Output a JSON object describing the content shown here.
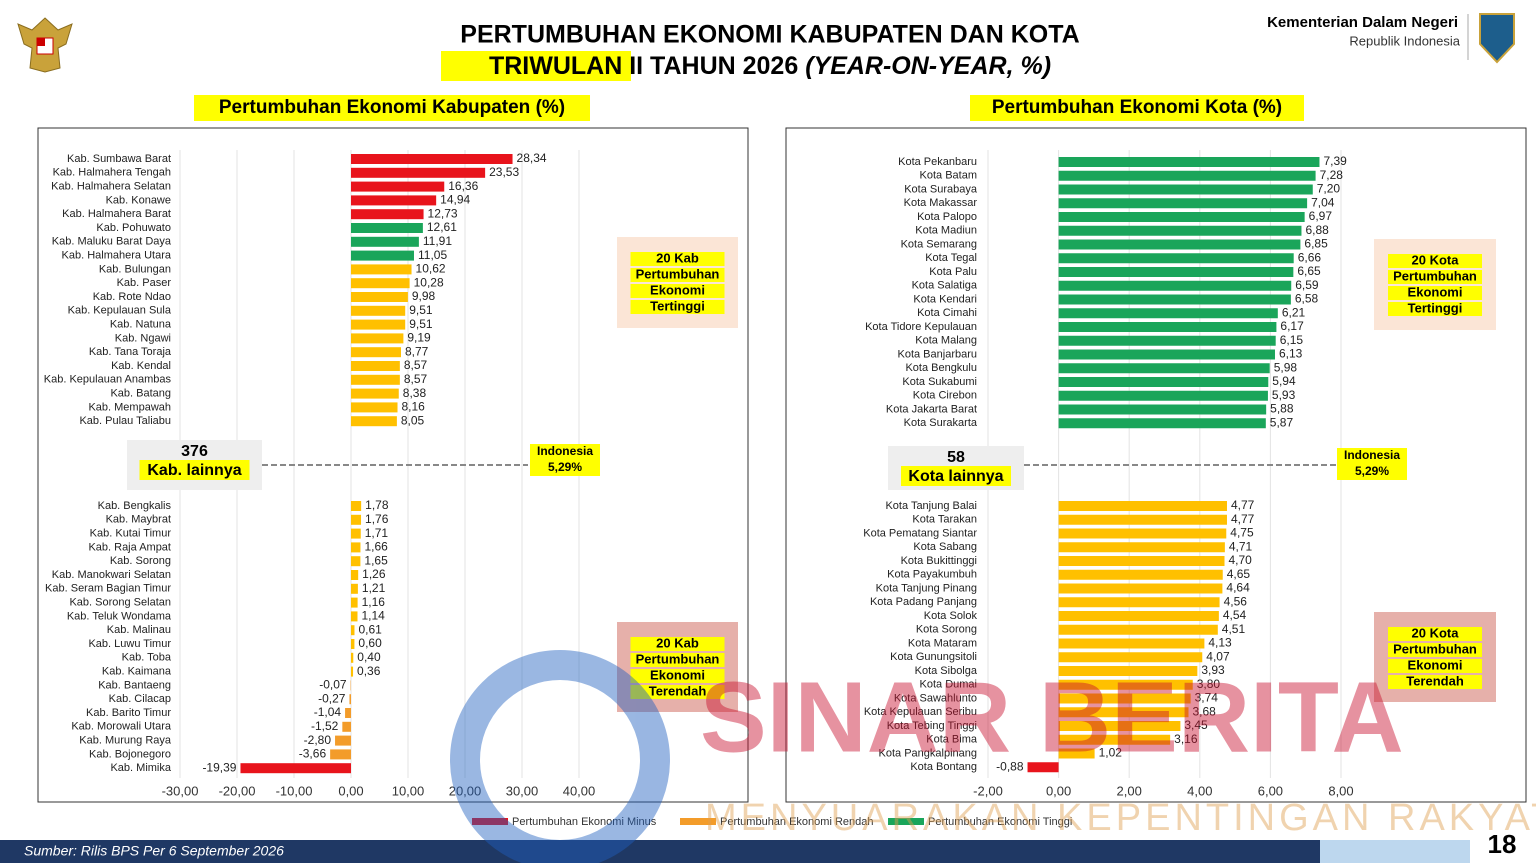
{
  "header": {
    "title_line1": "PERTUMBUHAN EKONOMI KABUPATEN DAN KOTA",
    "title_line2_highlight": "TRIWULAN II",
    "title_line2_rest": " TAHUN 2026 ",
    "title_line2_italic": "(YEAR-ON-YEAR, %)",
    "ministry": "Kementerian Dalam Negeri",
    "country": "Republik Indonesia"
  },
  "chart_data": [
    {
      "type": "bar",
      "orientation": "horizontal",
      "title": "Pertumbuhan Ekonomi Kabupaten (%)",
      "categories": [
        "Kab. Sumbawa Barat",
        "Kab. Halmahera Tengah",
        "Kab. Halmahera Selatan",
        "Kab. Konawe",
        "Kab. Halmahera Barat",
        "Kab. Pohuwato",
        "Kab. Maluku Barat Daya",
        "Kab. Halmahera Utara",
        "Kab. Bulungan",
        "Kab. Paser",
        "Kab. Rote Ndao",
        "Kab. Kepulauan Sula",
        "Kab. Natuna",
        "Kab. Ngawi",
        "Kab. Tana Toraja",
        "Kab. Kendal",
        "Kab. Kepulauan Anambas",
        "Kab. Batang",
        "Kab. Mempawah",
        "Kab. Pulau Taliabu",
        "Kab. Bengkalis",
        "Kab. Maybrat",
        "Kab. Kutai Timur",
        "Kab. Raja Ampat",
        "Kab. Sorong",
        "Kab. Manokwari Selatan",
        "Kab. Seram Bagian Timur",
        "Kab. Sorong Selatan",
        "Kab. Teluk Wondama",
        "Kab. Malinau",
        "Kab. Luwu Timur",
        "Kab. Toba",
        "Kab. Kaimana",
        "Kab. Bantaeng",
        "Kab. Cilacap",
        "Kab. Barito Timur",
        "Kab. Morowali Utara",
        "Kab. Murung Raya",
        "Kab. Bojonegoro",
        "Kab. Mimika"
      ],
      "values": [
        28.34,
        23.53,
        16.36,
        14.94,
        12.73,
        12.61,
        11.91,
        11.05,
        10.62,
        10.28,
        9.98,
        9.51,
        9.51,
        9.19,
        8.77,
        8.57,
        8.57,
        8.38,
        8.16,
        8.05,
        1.78,
        1.76,
        1.71,
        1.66,
        1.65,
        1.26,
        1.21,
        1.16,
        1.14,
        0.61,
        0.6,
        0.4,
        0.36,
        -0.07,
        -0.27,
        -1.04,
        -1.52,
        -2.8,
        -3.66,
        -19.39
      ],
      "value_labels": [
        "28,34",
        "23,53",
        "16,36",
        "14,94",
        "12,73",
        "12,61",
        "11,91",
        "11,05",
        "10,62",
        "10,28",
        "9,98",
        "9,51",
        "9,51",
        "9,19",
        "8,77",
        "8,57",
        "8,57",
        "8,38",
        "8,16",
        "8,05",
        "1,78",
        "1,76",
        "1,71",
        "1,66",
        "1,65",
        "1,26",
        "1,21",
        "1,16",
        "1,14",
        "0,61",
        "0,60",
        "0,40",
        "0,36",
        "-0,07",
        "-0,27",
        "-1,04",
        "-1,52",
        "-2,80",
        "-3,66",
        "-19,39"
      ],
      "colors": [
        "#e8141c",
        "#e8141c",
        "#e8141c",
        "#e8141c",
        "#e8141c",
        "#1aa55a",
        "#1aa55a",
        "#1aa55a",
        "#ffc000",
        "#ffc000",
        "#ffc000",
        "#ffc000",
        "#ffc000",
        "#ffc000",
        "#ffc000",
        "#ffc000",
        "#ffc000",
        "#ffc000",
        "#ffc000",
        "#ffc000",
        "#ffc000",
        "#ffc000",
        "#ffc000",
        "#ffc000",
        "#ffc000",
        "#ffc000",
        "#ffc000",
        "#ffc000",
        "#ffc000",
        "#ffc000",
        "#ffc000",
        "#ffc000",
        "#ffc000",
        "#f39c2a",
        "#f39c2a",
        "#f39c2a",
        "#f39c2a",
        "#f39c2a",
        "#f39c2a",
        "#e8141c"
      ],
      "xlim": [
        -30,
        40
      ],
      "xticks": [
        {
          "value": -30,
          "label": "-30,00"
        },
        {
          "value": -20,
          "label": "-20,00"
        },
        {
          "value": -10,
          "label": "-10,00"
        },
        {
          "value": 0,
          "label": "0,00"
        },
        {
          "value": 10,
          "label": "10,00"
        },
        {
          "value": 20,
          "label": "20,00"
        },
        {
          "value": 30,
          "label": "30,00"
        },
        {
          "value": 40,
          "label": "40,00"
        }
      ],
      "grid": true,
      "others": {
        "count": "376",
        "label": "Kab. lainnya"
      },
      "reference": {
        "name": "Indonesia",
        "value": 5.29,
        "label": "5,29%"
      },
      "top_note": [
        "20 Kab",
        "Pertumbuhan",
        "Ekonomi",
        "Tertinggi"
      ],
      "bottom_note": [
        "20 Kab",
        "Pertumbuhan",
        "Ekonomi",
        "Terendah"
      ]
    },
    {
      "type": "bar",
      "orientation": "horizontal",
      "title": "Pertumbuhan Ekonomi Kota (%)",
      "categories": [
        "Kota Pekanbaru",
        "Kota Batam",
        "Kota Surabaya",
        "Kota Makassar",
        "Kota Palopo",
        "Kota Madiun",
        "Kota Semarang",
        "Kota Tegal",
        "Kota Palu",
        "Kota Salatiga",
        "Kota Kendari",
        "Kota Cimahi",
        "Kota Tidore Kepulauan",
        "Kota Malang",
        "Kota Banjarbaru",
        "Kota Bengkulu",
        "Kota Sukabumi",
        "Kota Cirebon",
        "Kota Jakarta Barat",
        "Kota Surakarta",
        "Kota Tanjung Balai",
        "Kota Tarakan",
        "Kota Pematang Siantar",
        "Kota Sabang",
        "Kota Bukittinggi",
        "Kota Payakumbuh",
        "Kota Tanjung Pinang",
        "Kota Padang Panjang",
        "Kota Solok",
        "Kota Sorong",
        "Kota Mataram",
        "Kota Gunungsitoli",
        "Kota Sibolga",
        "Kota Dumai",
        "Kota Sawahlunto",
        "Kota Kepulauan Seribu",
        "Kota Tebing Tinggi",
        "Kota Bima",
        "Kota Pangkalpinang",
        "Kota Bontang"
      ],
      "values": [
        7.39,
        7.28,
        7.2,
        7.04,
        6.97,
        6.88,
        6.85,
        6.66,
        6.65,
        6.59,
        6.58,
        6.21,
        6.17,
        6.15,
        6.13,
        5.98,
        5.94,
        5.93,
        5.88,
        5.87,
        4.77,
        4.77,
        4.75,
        4.71,
        4.7,
        4.65,
        4.64,
        4.56,
        4.54,
        4.51,
        4.13,
        4.07,
        3.93,
        3.8,
        3.74,
        3.68,
        3.45,
        3.16,
        1.02,
        -0.88
      ],
      "value_labels": [
        "7,39",
        "7,28",
        "7,20",
        "7,04",
        "6,97",
        "6,88",
        "6,85",
        "6,66",
        "6,65",
        "6,59",
        "6,58",
        "6,21",
        "6,17",
        "6,15",
        "6,13",
        "5,98",
        "5,94",
        "5,93",
        "5,88",
        "5,87",
        "4,77",
        "4,77",
        "4,75",
        "4,71",
        "4,70",
        "4,65",
        "4,64",
        "4,56",
        "4,54",
        "4,51",
        "4,13",
        "4,07",
        "3,93",
        "3,80",
        "3,74",
        "3,68",
        "3,45",
        "3,16",
        "1,02",
        "-0,88"
      ],
      "colors": [
        "#1aa55a",
        "#1aa55a",
        "#1aa55a",
        "#1aa55a",
        "#1aa55a",
        "#1aa55a",
        "#1aa55a",
        "#1aa55a",
        "#1aa55a",
        "#1aa55a",
        "#1aa55a",
        "#1aa55a",
        "#1aa55a",
        "#1aa55a",
        "#1aa55a",
        "#1aa55a",
        "#1aa55a",
        "#1aa55a",
        "#1aa55a",
        "#1aa55a",
        "#ffc000",
        "#ffc000",
        "#ffc000",
        "#ffc000",
        "#ffc000",
        "#ffc000",
        "#ffc000",
        "#ffc000",
        "#ffc000",
        "#ffc000",
        "#ffc000",
        "#ffc000",
        "#ffc000",
        "#ffc000",
        "#ffc000",
        "#ffc000",
        "#ffc000",
        "#ffc000",
        "#ffc000",
        "#e8141c"
      ],
      "xlim": [
        -2,
        8
      ],
      "xticks": [
        {
          "value": -2,
          "label": "-2,00"
        },
        {
          "value": 0,
          "label": "0,00"
        },
        {
          "value": 2,
          "label": "2,00"
        },
        {
          "value": 4,
          "label": "4,00"
        },
        {
          "value": 6,
          "label": "6,00"
        },
        {
          "value": 8,
          "label": "8,00"
        }
      ],
      "grid": true,
      "others": {
        "count": "58",
        "label": "Kota lainnya"
      },
      "reference": {
        "name": "Indonesia",
        "value": 5.29,
        "label": "5,29%"
      },
      "top_note": [
        "20 Kota",
        "Pertumbuhan",
        "Ekonomi",
        "Tertinggi"
      ],
      "bottom_note": [
        "20 Kota",
        "Pertumbuhan",
        "Ekonomi",
        "Terendah"
      ]
    }
  ],
  "legend": [
    {
      "name": "Pertumbuhan Ekonomi Minus",
      "color": "#e8141c"
    },
    {
      "name": "Pertumbuhan Ekonomi Rendah",
      "color": "#f39c2a"
    },
    {
      "name": "Pertumbuhan Ekonomi Tinggi",
      "color": "#1aa55a"
    }
  ],
  "footer": {
    "source": "Sumber: Rilis BPS Per 6 September 2026",
    "page": "18"
  },
  "watermark": {
    "name": "SINAR BERITA",
    "tagline": "MENYUARAKAN KEPENTINGAN RAKYAT"
  }
}
